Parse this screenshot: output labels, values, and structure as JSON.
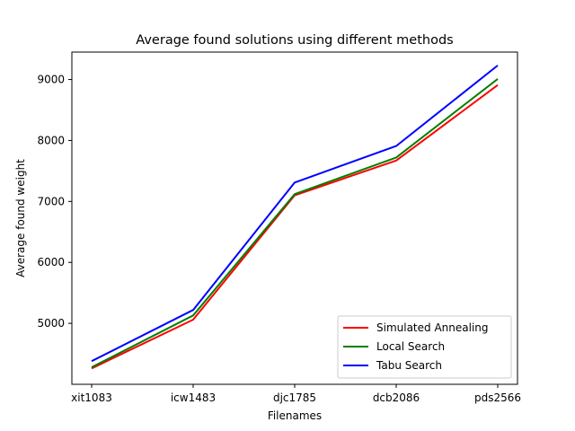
{
  "chart_data": {
    "type": "line",
    "title": "Average found solutions using different methods",
    "xlabel": "Filenames",
    "ylabel": "Average found weight",
    "categories": [
      "xit1083",
      "icw1483",
      "djc1785",
      "dcb2086",
      "pds2566"
    ],
    "ylim": [
      4000,
      9450
    ],
    "yticks": [
      5000,
      6000,
      7000,
      8000,
      9000
    ],
    "grid": false,
    "legend_position": "lower-right",
    "series": [
      {
        "name": "Simulated Annealing",
        "color": "#ff0000",
        "values": [
          4260,
          5060,
          7100,
          7670,
          8910
        ]
      },
      {
        "name": "Local Search",
        "color": "#008000",
        "values": [
          4280,
          5130,
          7120,
          7720,
          9010
        ]
      },
      {
        "name": "Tabu Search",
        "color": "#0000ff",
        "values": [
          4380,
          5220,
          7310,
          7910,
          9230
        ]
      }
    ]
  }
}
